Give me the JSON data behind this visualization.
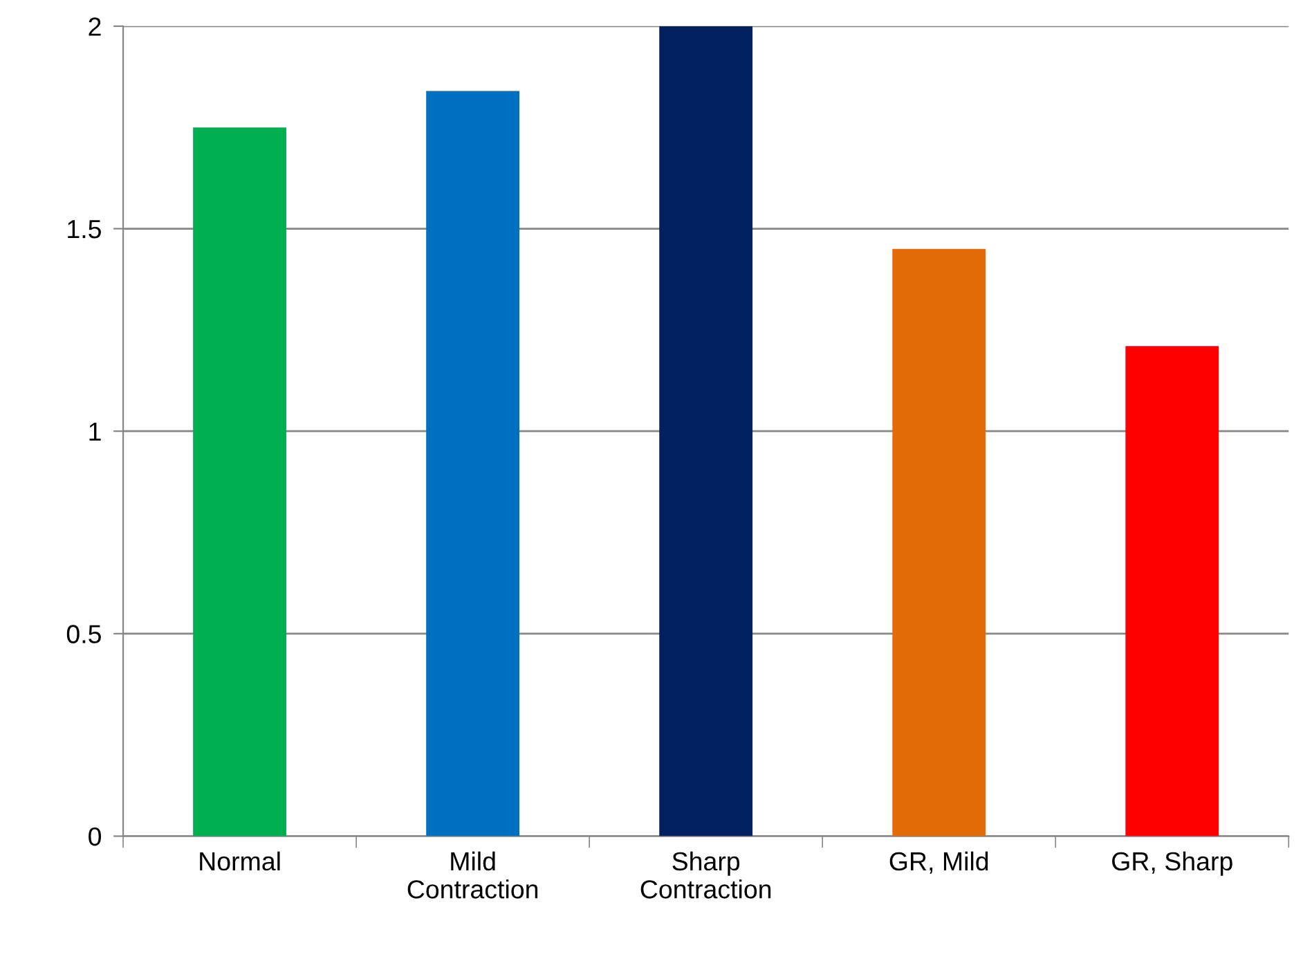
{
  "chart_data": {
    "type": "bar",
    "categories": [
      "Normal",
      "Mild Contraction",
      "Sharp Contraction",
      "GR, Mild",
      "GR, Sharp"
    ],
    "values": [
      1.75,
      1.84,
      2.0,
      1.45,
      1.21
    ],
    "colors": [
      "#00b050",
      "#0070c0",
      "#002060",
      "#e36c09",
      "#ff0000"
    ],
    "ylim": [
      0,
      2
    ],
    "yticks": [
      0,
      0.5,
      1,
      1.5,
      2
    ],
    "grid": "y",
    "legend": false
  }
}
